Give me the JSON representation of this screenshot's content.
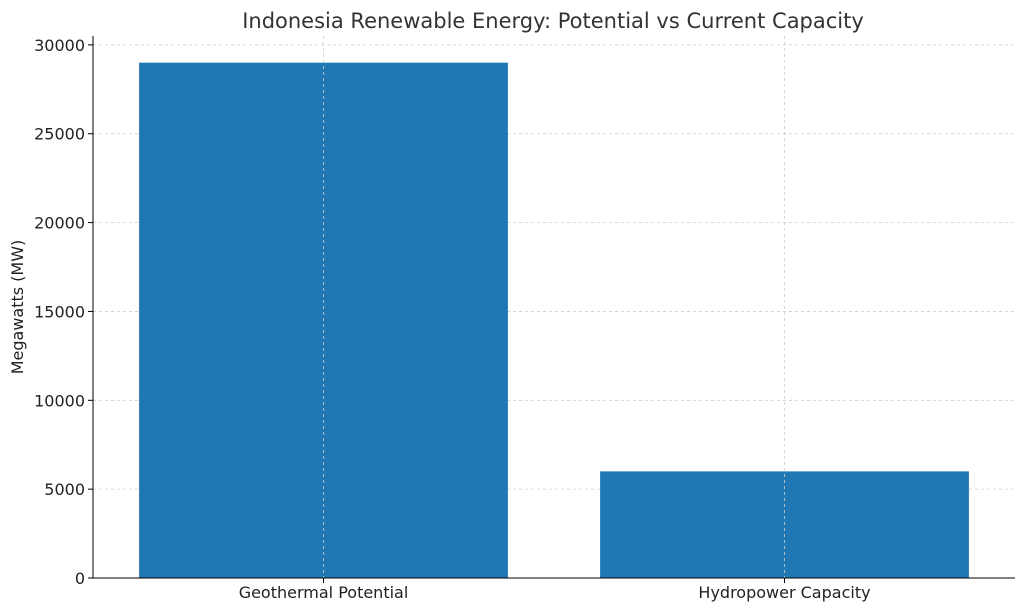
{
  "chart_data": {
    "type": "bar",
    "title": "Indonesia Renewable Energy: Potential vs Current Capacity",
    "xlabel": "",
    "ylabel": "Megawatts (MW)",
    "categories": [
      "Geothermal Potential",
      "Hydropower Capacity"
    ],
    "values": [
      29000,
      6000
    ],
    "ylim": [
      0,
      30500
    ],
    "yticks": [
      0,
      5000,
      10000,
      15000,
      20000,
      25000,
      30000
    ],
    "grid": true,
    "bar_color": "#1f77b4"
  }
}
